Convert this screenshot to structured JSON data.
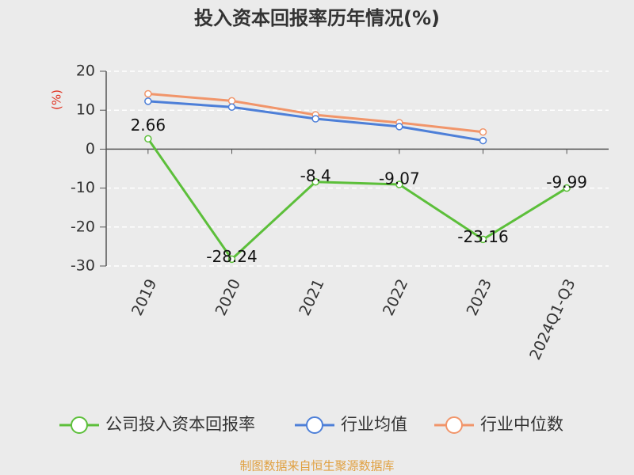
{
  "chart_data": {
    "type": "line",
    "title": "投入资本回报率历年情况(%)",
    "y_label": "(%)",
    "categories": [
      "2019",
      "2020",
      "2021",
      "2022",
      "2023",
      "2024Q1-Q3"
    ],
    "series": [
      {
        "name": "公司投入资本回报率",
        "color": "#5cbf3a",
        "values": [
          2.66,
          -28.24,
          -8.4,
          -9.07,
          -23.16,
          -9.99
        ],
        "show_labels": true
      },
      {
        "name": "行业均值",
        "color": "#4d7fd8",
        "values": [
          12.3,
          10.8,
          7.8,
          5.8,
          2.2,
          null
        ],
        "show_labels": false
      },
      {
        "name": "行业中位数",
        "color": "#f1956a",
        "values": [
          14.2,
          12.4,
          8.8,
          6.8,
          4.4,
          null
        ],
        "show_labels": false
      }
    ],
    "ylim": [
      -30,
      20
    ],
    "yticks": [
      -30,
      -20,
      -10,
      0,
      10,
      20
    ],
    "grid": true,
    "legend": "bottom",
    "footer": "制图数据来自恒生聚源数据库"
  }
}
